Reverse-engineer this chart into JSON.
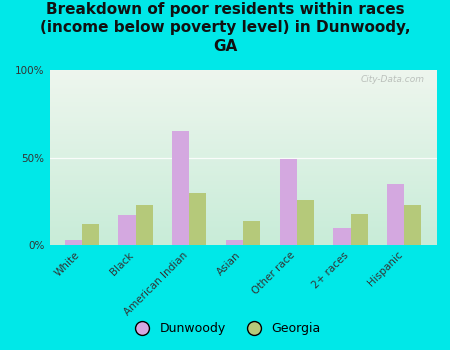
{
  "title": "Breakdown of poor residents within races\n(income below poverty level) in Dunwoody,\nGA",
  "categories": [
    "White",
    "Black",
    "American Indian",
    "Asian",
    "Other race",
    "2+ races",
    "Hispanic"
  ],
  "dunwoody": [
    3,
    17,
    65,
    3,
    49,
    10,
    35
  ],
  "georgia": [
    12,
    23,
    30,
    14,
    26,
    18,
    23
  ],
  "dunwoody_color": "#d4a8e0",
  "georgia_color": "#b5c97a",
  "background_top": "#c8ecd8",
  "background_bottom": "#eef6ee",
  "outer_bg": "#00e8e8",
  "bar_width": 0.32,
  "ylim": [
    0,
    100
  ],
  "yticks": [
    0,
    50,
    100
  ],
  "ytick_labels": [
    "0%",
    "50%",
    "100%"
  ],
  "watermark": "City-Data.com",
  "title_fontsize": 11,
  "tick_fontsize": 7.5,
  "legend_fontsize": 9
}
